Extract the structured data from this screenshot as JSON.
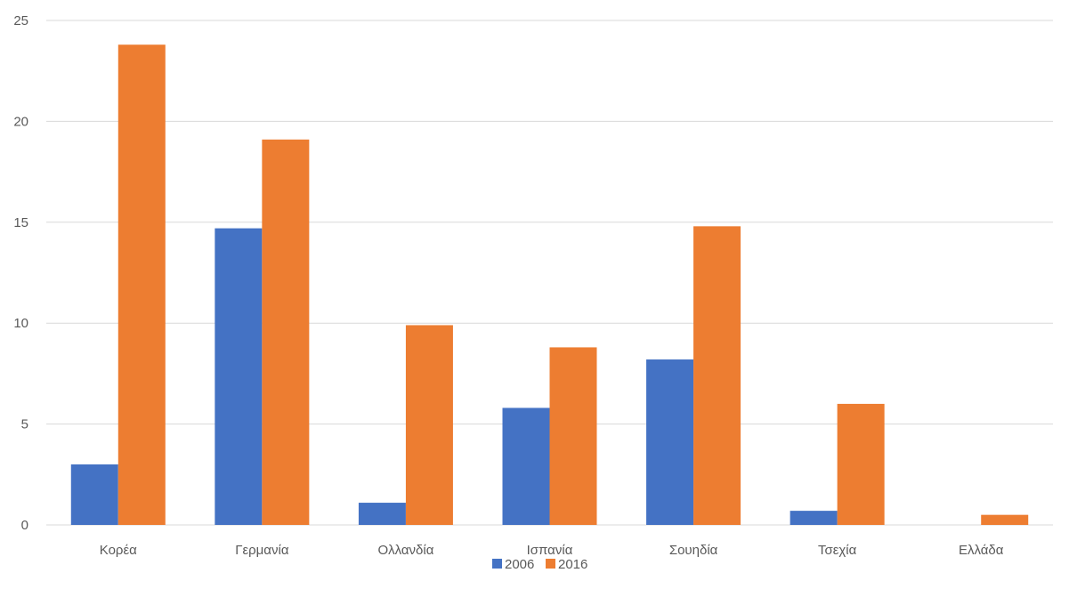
{
  "chart_data": {
    "type": "bar",
    "title": "",
    "xlabel": "",
    "ylabel": "",
    "categories": [
      "Κορέα",
      "Γερμανία",
      "Ολλανδία",
      "Ισπανία",
      "Σουηδία",
      "Τσεχία",
      "Ελλάδα"
    ],
    "series": [
      {
        "name": "2006",
        "color": "#4472C4",
        "values": [
          3.0,
          14.7,
          1.1,
          5.8,
          8.2,
          0.7,
          0.0
        ]
      },
      {
        "name": "2016",
        "color": "#ED7D31",
        "values": [
          23.8,
          19.1,
          9.9,
          8.8,
          14.8,
          6.0,
          0.5
        ]
      }
    ],
    "ylim": [
      0,
      25
    ],
    "yticks": [
      0,
      5,
      10,
      15,
      20,
      25
    ],
    "grid": true,
    "legend": "bottom"
  }
}
